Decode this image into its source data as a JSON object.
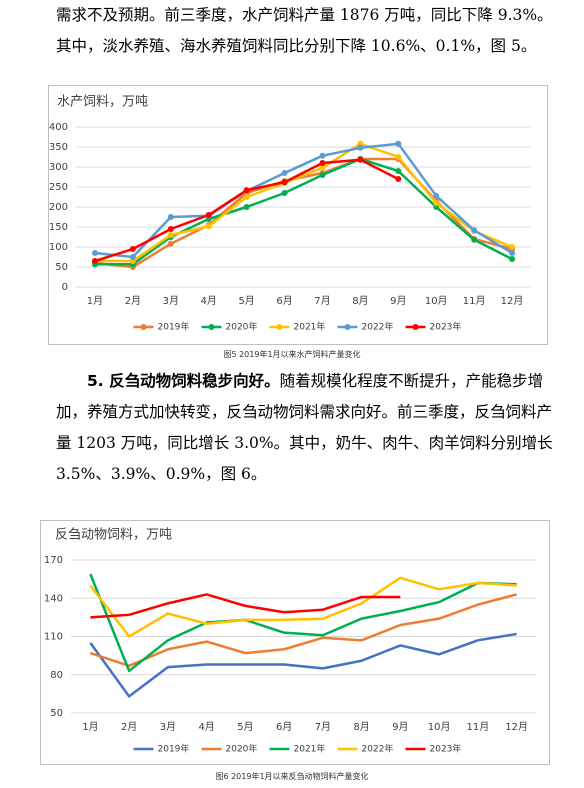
{
  "paragraphs": [
    {
      "text": "需求不及预期。前三季度，水产饲料产量 1876 万吨，同比下降 9.3%。其中，淡水养殖、海水养殖饲料同比分别下降 10.6%、0.1%，图 5。"
    },
    {
      "bold": "5. 反刍动物饲料稳步向好。",
      "text": "随着规模化程度不断提升，产能稳步增加，养殖方式加快转变，反刍动物饲料需求向好。前三季度，反刍饲料产量 1203 万吨，同比增长 3.0%。其中，奶牛、肉牛、肉羊饲料分别增长 3.5%、3.9%、0.9%，图 6。"
    }
  ],
  "captions": [
    "图5 2019年1月以来水产饲料产量变化",
    "图6 2019年1月以来反刍动物饲料产量变化"
  ],
  "chart_data": [
    {
      "type": "line",
      "title": "水产饲料，万吨",
      "markers": true,
      "grid": true,
      "categories": [
        "1月",
        "2月",
        "3月",
        "4月",
        "5月",
        "6月",
        "7月",
        "8月",
        "9月",
        "10月",
        "11月",
        "12月"
      ],
      "ylim": [
        0,
        400
      ],
      "yticks": [
        0,
        50,
        100,
        150,
        200,
        250,
        300,
        350,
        400
      ],
      "series": [
        {
          "name": "2019年",
          "color": "#ed7d31",
          "values": [
            60,
            50,
            108,
            155,
            235,
            265,
            285,
            320,
            320,
            215,
            120,
            95
          ]
        },
        {
          "name": "2020年",
          "color": "#00b050",
          "values": [
            57,
            57,
            125,
            170,
            200,
            235,
            280,
            320,
            290,
            200,
            118,
            70
          ]
        },
        {
          "name": "2021年",
          "color": "#ffc000",
          "values": [
            65,
            65,
            130,
            152,
            225,
            260,
            298,
            358,
            325,
            210,
            140,
            100
          ]
        },
        {
          "name": "2022年",
          "color": "#5b9bd5",
          "values": [
            85,
            75,
            175,
            178,
            240,
            285,
            328,
            348,
            358,
            228,
            142,
            85
          ]
        },
        {
          "name": "2023年",
          "color": "#ff0000",
          "values": [
            65,
            95,
            145,
            180,
            242,
            262,
            310,
            318,
            270,
            null,
            null,
            null
          ]
        }
      ]
    },
    {
      "type": "line",
      "title": "反刍动物饲料，万吨",
      "markers": false,
      "grid": true,
      "categories": [
        "1月",
        "2月",
        "3月",
        "4月",
        "5月",
        "6月",
        "7月",
        "8月",
        "9月",
        "10月",
        "11月",
        "12月"
      ],
      "ylim": [
        50,
        170
      ],
      "yticks": [
        50,
        80,
        110,
        140,
        170
      ],
      "series": [
        {
          "name": "2019年",
          "color": "#4472c4",
          "values": [
            105,
            63,
            86,
            88,
            88,
            88,
            85,
            91,
            103,
            96,
            107,
            112
          ]
        },
        {
          "name": "2020年",
          "color": "#ed7d31",
          "values": [
            97,
            87,
            100,
            106,
            97,
            100,
            109,
            107,
            119,
            124,
            135,
            143
          ]
        },
        {
          "name": "2021年",
          "color": "#00b050",
          "values": [
            159,
            83,
            107,
            121,
            123,
            113,
            111,
            124,
            130,
            137,
            152,
            151
          ]
        },
        {
          "name": "2022年",
          "color": "#ffc000",
          "values": [
            150,
            110,
            128,
            120,
            123,
            123,
            124,
            136,
            156,
            147,
            152,
            150
          ]
        },
        {
          "name": "2023年",
          "color": "#ff0000",
          "values": [
            125,
            127,
            136,
            143,
            134,
            129,
            131,
            141,
            141,
            null,
            null,
            null
          ]
        }
      ]
    }
  ]
}
